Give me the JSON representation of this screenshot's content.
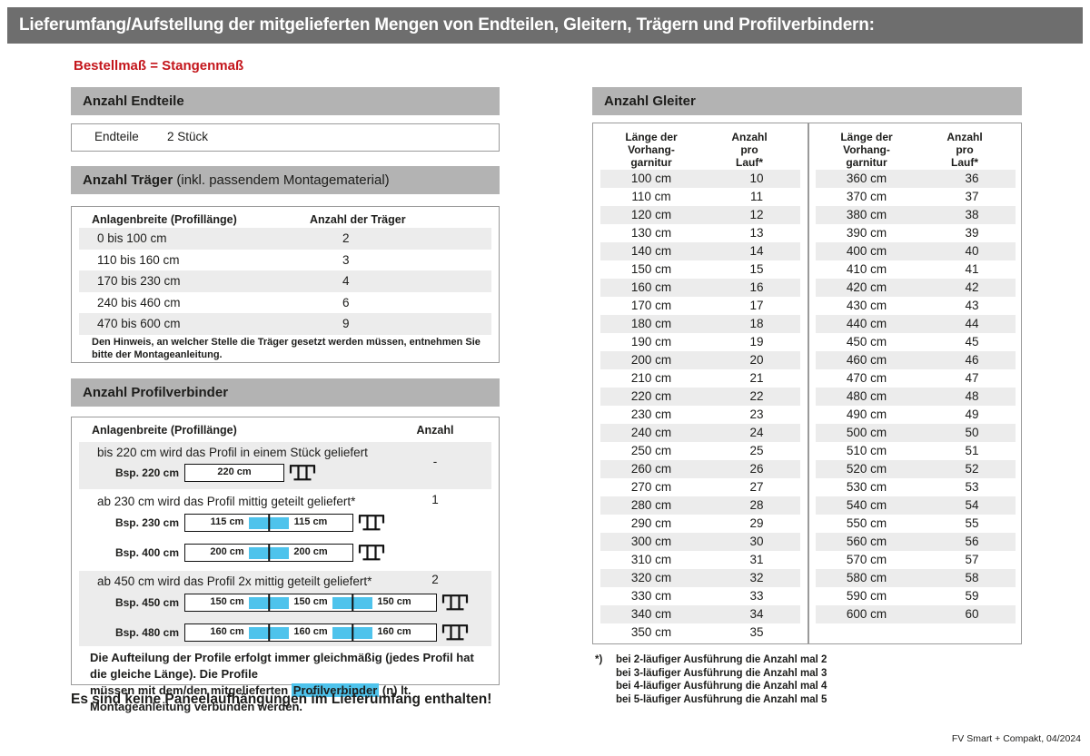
{
  "page": {
    "title": "Lieferumfang/Aufstellung der mitgelieferten Mengen von Endteilen, Gleitern, Trägern und Profilverbindern:",
    "subtitle": "Bestellmaß = Stangenmaß",
    "footer": "FV Smart + Compakt, 04/2024"
  },
  "colors": {
    "title_bar_gray": "#6e6e6e",
    "section_header_gray": "#b3b3b3",
    "row_stripe_gray": "#ececec",
    "accent_blue": "#4ec3ec",
    "accent_red": "#c4161c"
  },
  "endteile": {
    "heading": "Anzahl Endteile",
    "label": "Endteile",
    "value": "2 Stück"
  },
  "traeger": {
    "heading_bold": "Anzahl Träger",
    "heading_rest": " (inkl. passendem Montagematerial)",
    "col1": "Anlagenbreite (Profillänge)",
    "col2": "Anzahl der Träger",
    "rows": [
      [
        "0 bis 100 cm",
        "2"
      ],
      [
        "110 bis 160 cm",
        "3"
      ],
      [
        "170 bis 230 cm",
        "4"
      ],
      [
        "240 bis 460 cm",
        "6"
      ],
      [
        "470 bis 600 cm",
        "9"
      ]
    ],
    "note": "Den Hinweis, an welcher Stelle die Träger gesetzt werden müssen, entnehmen Sie bitte der Montageanleitung."
  },
  "profilverbinder": {
    "heading": "Anzahl Profilverbinder",
    "col1": "Anlagenbreite (Profillänge)",
    "col2": "Anzahl",
    "sections": [
      {
        "text": "bis 220 cm wird das Profil in einem Stück geliefert",
        "anzahl": "-",
        "examples": [
          {
            "label": "Bsp. 220 cm",
            "segments": [
              "220 cm"
            ]
          }
        ]
      },
      {
        "text": "ab 230 cm wird das Profil mittig geteilt geliefert*",
        "anzahl": "1",
        "examples": [
          {
            "label": "Bsp. 230 cm",
            "segments": [
              "115 cm",
              "115 cm"
            ]
          },
          {
            "label": "Bsp. 400 cm",
            "segments": [
              "200 cm",
              "200 cm"
            ]
          }
        ]
      },
      {
        "text": "ab 450 cm wird das Profil 2x mittig geteilt geliefert*",
        "anzahl": "2",
        "examples": [
          {
            "label": "Bsp. 450 cm",
            "segments": [
              "150 cm",
              "150 cm",
              "150 cm"
            ]
          },
          {
            "label": "Bsp. 480 cm",
            "segments": [
              "160 cm",
              "160 cm",
              "160 cm"
            ]
          }
        ]
      }
    ],
    "note_line1": "Die Aufteilung der Profile erfolgt immer gleichmäßig (jedes Profil hat die gleiche Länge). Die Profile",
    "note_line2_before": "müssen mit dem/den mitgelieferten ",
    "note_highlight": "Profilverbinder",
    "note_line2_after": " (n) lt. Montageanleitung verbunden werden."
  },
  "statement": "Es sind keine Paneelaufhängungen im Lieferumfang enthalten!",
  "gleiter": {
    "heading": "Anzahl Gleiter",
    "col1_lines": [
      "Länge der",
      "Vorhang-",
      "garnitur"
    ],
    "col2_lines": [
      "Anzahl",
      "pro",
      "Lauf*"
    ],
    "left_rows": [
      [
        "100 cm",
        "10"
      ],
      [
        "110 cm",
        "11"
      ],
      [
        "120 cm",
        "12"
      ],
      [
        "130 cm",
        "13"
      ],
      [
        "140 cm",
        "14"
      ],
      [
        "150 cm",
        "15"
      ],
      [
        "160 cm",
        "16"
      ],
      [
        "170 cm",
        "17"
      ],
      [
        "180 cm",
        "18"
      ],
      [
        "190 cm",
        "19"
      ],
      [
        "200 cm",
        "20"
      ],
      [
        "210 cm",
        "21"
      ],
      [
        "220 cm",
        "22"
      ],
      [
        "230 cm",
        "23"
      ],
      [
        "240 cm",
        "24"
      ],
      [
        "250 cm",
        "25"
      ],
      [
        "260 cm",
        "26"
      ],
      [
        "270 cm",
        "27"
      ],
      [
        "280 cm",
        "28"
      ],
      [
        "290 cm",
        "29"
      ],
      [
        "300 cm",
        "30"
      ],
      [
        "310 cm",
        "31"
      ],
      [
        "320 cm",
        "32"
      ],
      [
        "330 cm",
        "33"
      ],
      [
        "340 cm",
        "34"
      ],
      [
        "350 cm",
        "35"
      ]
    ],
    "right_rows": [
      [
        "360 cm",
        "36"
      ],
      [
        "370 cm",
        "37"
      ],
      [
        "380 cm",
        "38"
      ],
      [
        "390 cm",
        "39"
      ],
      [
        "400 cm",
        "40"
      ],
      [
        "410 cm",
        "41"
      ],
      [
        "420 cm",
        "42"
      ],
      [
        "430 cm",
        "43"
      ],
      [
        "440 cm",
        "44"
      ],
      [
        "450 cm",
        "45"
      ],
      [
        "460 cm",
        "46"
      ],
      [
        "470 cm",
        "47"
      ],
      [
        "480 cm",
        "48"
      ],
      [
        "490 cm",
        "49"
      ],
      [
        "500 cm",
        "50"
      ],
      [
        "510 cm",
        "51"
      ],
      [
        "520 cm",
        "52"
      ],
      [
        "530 cm",
        "53"
      ],
      [
        "540 cm",
        "54"
      ],
      [
        "550 cm",
        "55"
      ],
      [
        "560 cm",
        "56"
      ],
      [
        "570 cm",
        "57"
      ],
      [
        "580 cm",
        "58"
      ],
      [
        "590 cm",
        "59"
      ],
      [
        "600 cm",
        "60"
      ]
    ],
    "footnote_marker": "*)",
    "footnotes": [
      "bei 2-läufiger Ausführung die Anzahl mal 2",
      "bei 3-läufiger Ausführung die Anzahl mal 3",
      "bei 4-läufiger Ausführung die Anzahl mal 4",
      "bei 5-läufiger Ausführung die Anzahl mal 5"
    ]
  }
}
